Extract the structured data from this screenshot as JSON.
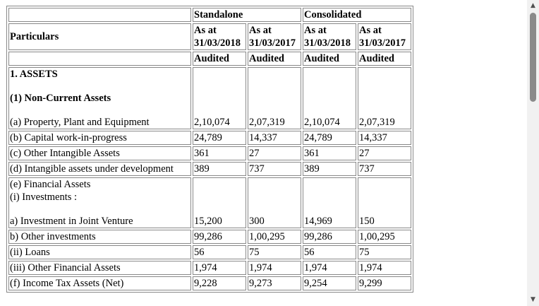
{
  "table": {
    "particulars_header": "Particulars",
    "group_standalone": "Standalone",
    "group_consolidated": "Consolidated",
    "as_at": "As at",
    "date_2018": "31/03/2018",
    "date_2017": "31/03/2017",
    "audited": "Audited",
    "section_assets": "1. ASSETS",
    "section_noncurrent": "(1) Non-Current Assets",
    "financial_assets": "(e) Financial Assets",
    "investments": "(i) Investments :",
    "rows": [
      {
        "label": "(a) Property, Plant and Equipment",
        "s2018": "2,10,074",
        "s2017": "2,07,319",
        "c2018": "2,10,074",
        "c2017": "2,07,319"
      },
      {
        "label": "(b) Capital work-in-progress",
        "s2018": "24,789",
        "s2017": "14,337",
        "c2018": "24,789",
        "c2017": "14,337"
      },
      {
        "label": "(c) Other Intangible Assets",
        "s2018": "361",
        "s2017": "27",
        "c2018": "361",
        "c2017": "27"
      },
      {
        "label": "(d) Intangible assets under development",
        "s2018": "389",
        "s2017": "737",
        "c2018": "389",
        "c2017": "737"
      },
      {
        "label": "a) Investment in Joint Venture",
        "s2018": "15,200",
        "s2017": "300",
        "c2018": "14,969",
        "c2017": "150"
      },
      {
        "label": "b) Other investments",
        "s2018": "99,286",
        "s2017": "1,00,295",
        "c2018": "99,286",
        "c2017": "1,00,295"
      },
      {
        "label": "(ii) Loans",
        "s2018": "56",
        "s2017": "75",
        "c2018": "56",
        "c2017": "75"
      },
      {
        "label": "(iii) Other Financial Assets",
        "s2018": "1,974",
        "s2017": "1,974",
        "c2018": "1,974",
        "c2017": "1,974"
      },
      {
        "label": "(f) Income Tax Assets (Net)",
        "s2018": "9,228",
        "s2017": "9,273",
        "c2018": "9,254",
        "c2017": "9,299"
      }
    ]
  },
  "scrollbar": {
    "up_icon": "▲",
    "down_icon": "▼"
  }
}
